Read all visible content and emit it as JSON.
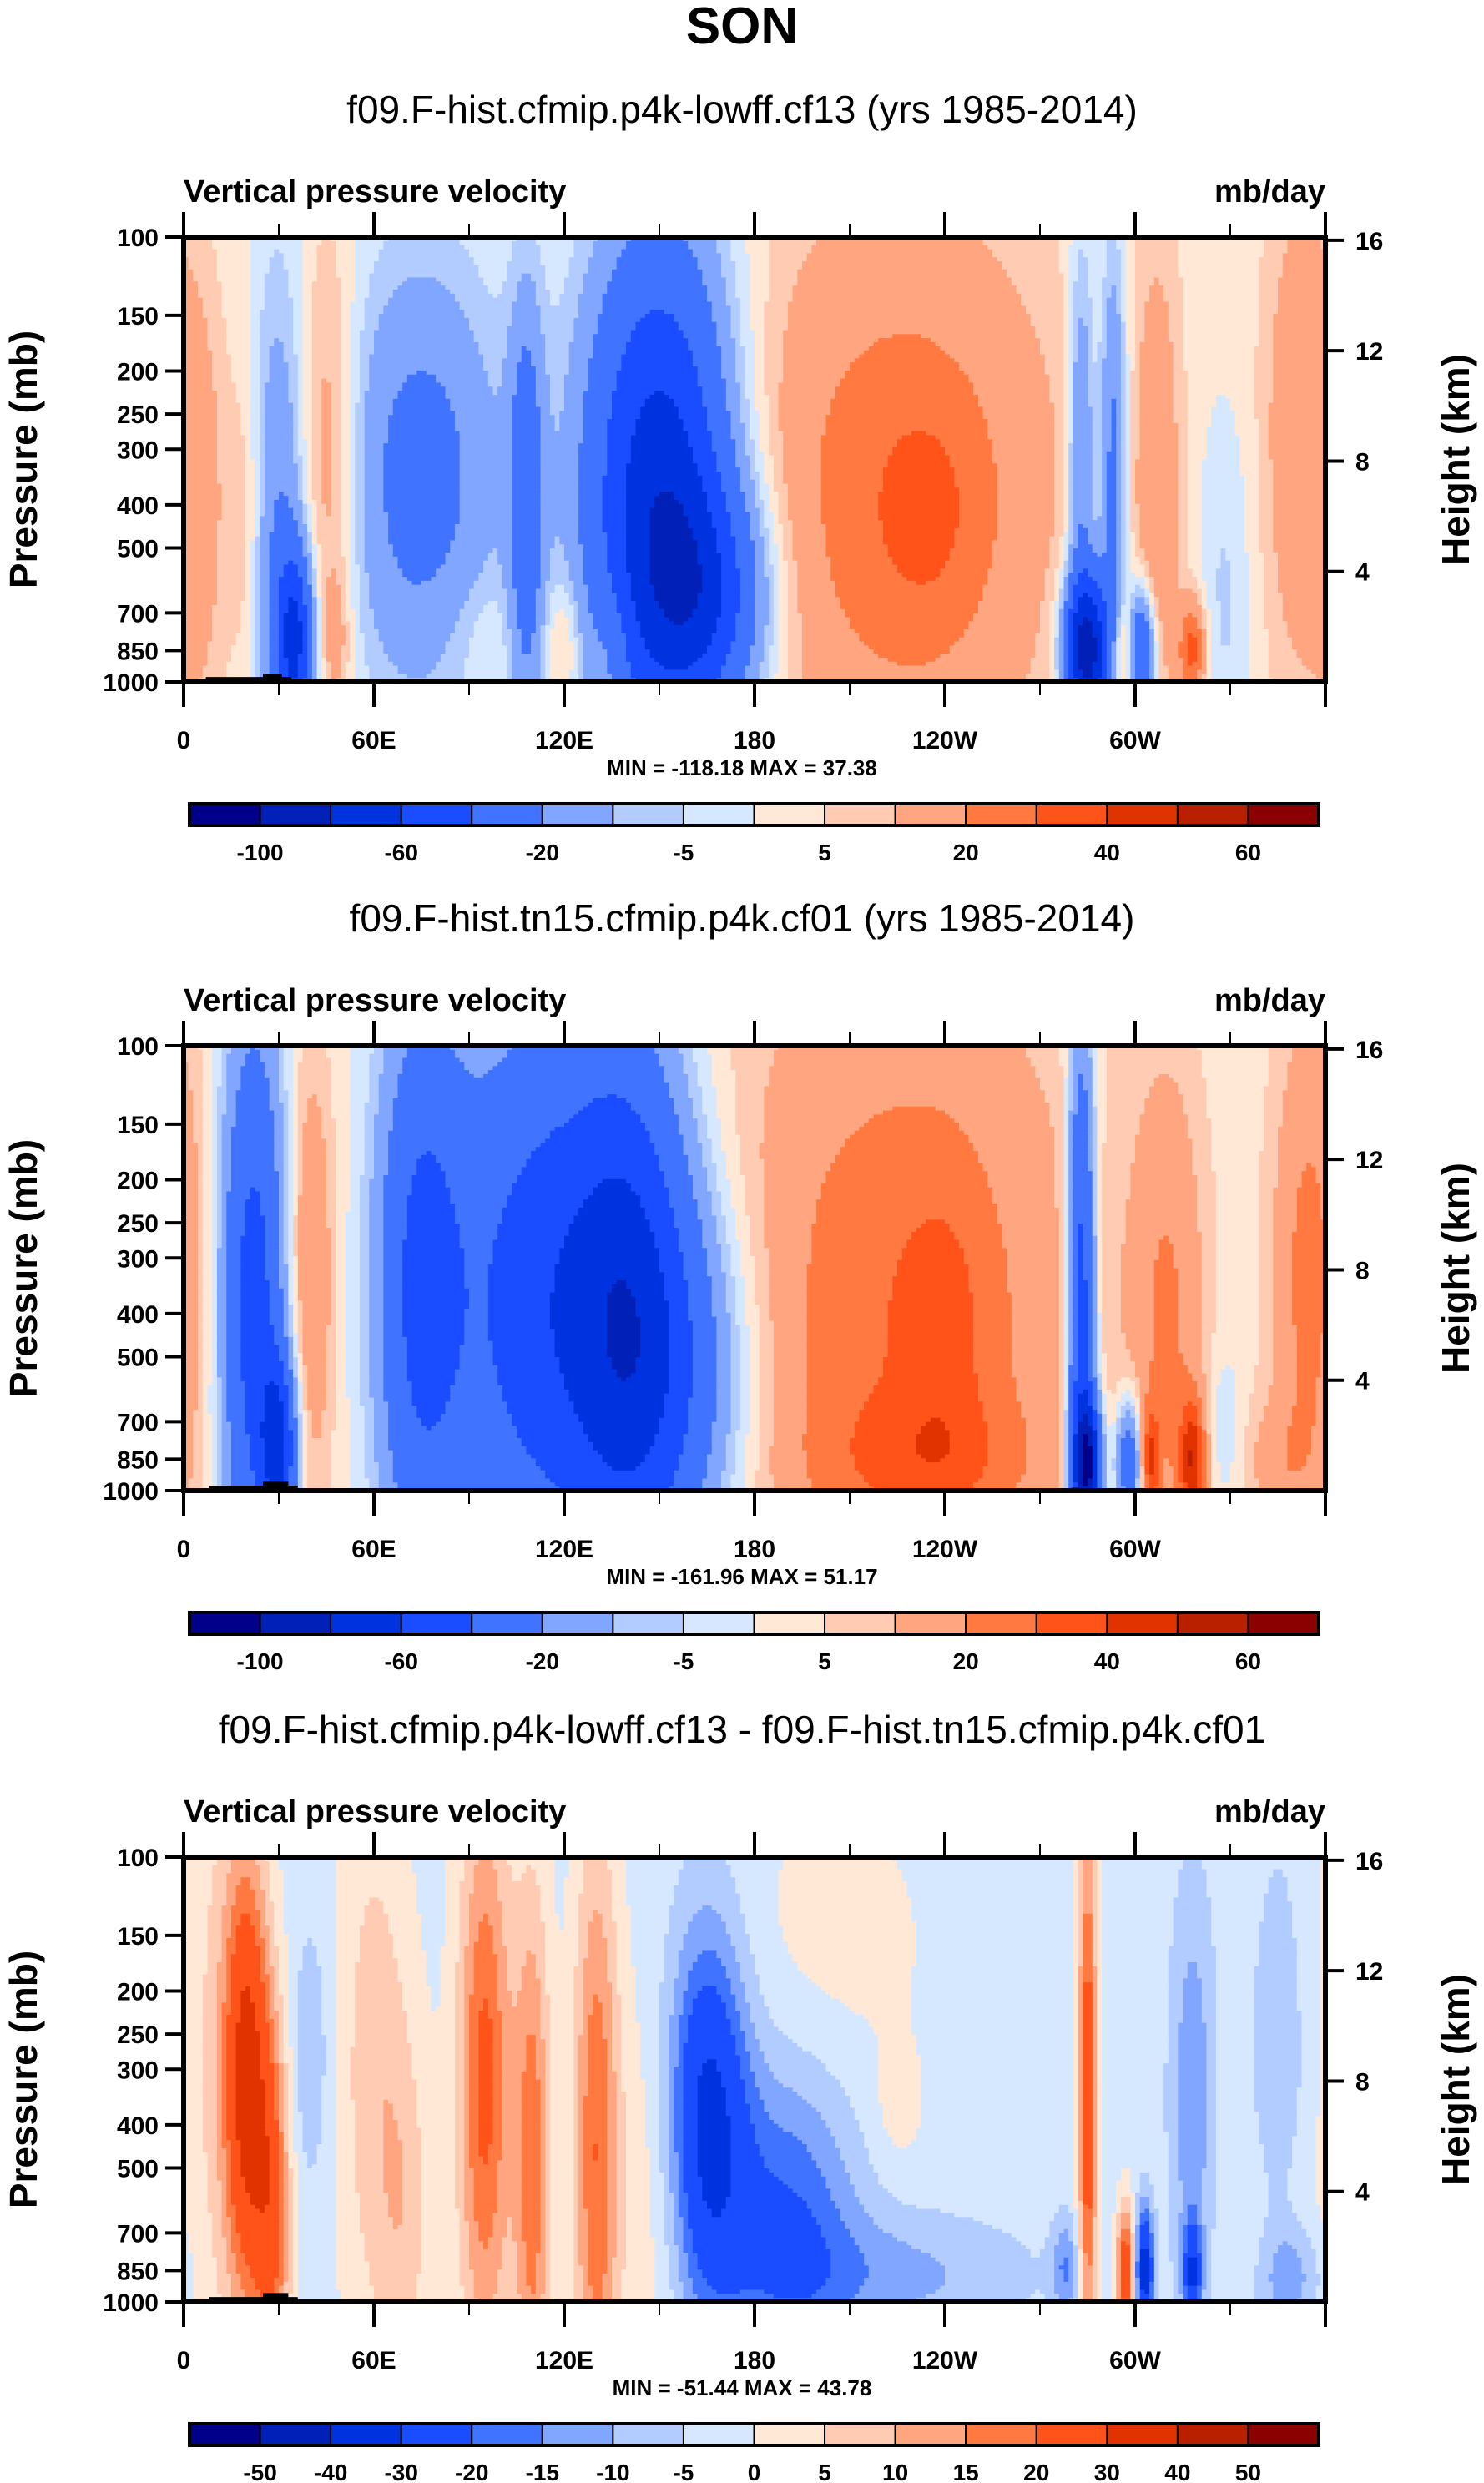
{
  "figure": {
    "main_title": "SON"
  },
  "chart_data": [
    {
      "type": "heatmap",
      "title": "f09.F-hist.cfmip.p4k-lowff.cf13 (yrs 1985-2014)",
      "left_string": "Vertical pressure velocity",
      "right_string": "mb/day",
      "xlabel": "",
      "ylabel": "Pressure (mb)",
      "ylabel_right": "Height (km)",
      "x_range": [
        0,
        360
      ],
      "x_ticks": [
        0,
        60,
        120,
        180,
        240,
        300
      ],
      "x_tick_labels": [
        "0",
        "60E",
        "120E",
        "180",
        "120W",
        "60W"
      ],
      "y_range": [
        100,
        1000
      ],
      "y_scale": "log-pressure",
      "y_ticks": [
        100,
        150,
        200,
        250,
        300,
        400,
        500,
        700,
        850,
        1000
      ],
      "y_tick_labels": [
        "100",
        "150",
        "200",
        "250",
        "300",
        "400",
        "500",
        "700",
        "850",
        "1000"
      ],
      "y_right_ticks": [
        4,
        8,
        12,
        16
      ],
      "y_right_tick_labels": [
        "4",
        "8",
        "12",
        "16"
      ],
      "min_max_text": "MIN = -118.18  MAX =  37.38",
      "min": -118.18,
      "max": 37.38,
      "levels": [
        -100,
        -80,
        -60,
        -40,
        -20,
        -10,
        -5,
        0,
        5,
        10,
        20,
        30,
        40,
        50,
        60
      ],
      "colorbar_labels": [
        "-100",
        "-60",
        "-20",
        "-5",
        "5",
        "20",
        "40",
        "60"
      ],
      "colorbar_label_every": 2,
      "field_background": 2,
      "features": [
        {
          "lon": 5,
          "p": 400,
          "dlon": 6,
          "dlp": 0.35,
          "v": 12
        },
        {
          "lon": 20,
          "p": 450,
          "dlon": 4,
          "dlp": 0.3,
          "v": 10
        },
        {
          "lon": 30,
          "p": 500,
          "dlon": 7,
          "dlp": 0.45,
          "v": -22
        },
        {
          "lon": 35,
          "p": 800,
          "dlon": 4,
          "dlp": 0.14,
          "v": -60
        },
        {
          "lon": 45,
          "p": 330,
          "dlon": 7,
          "dlp": 0.35,
          "v": 18
        },
        {
          "lon": 48,
          "p": 800,
          "dlon": 3,
          "dlp": 0.1,
          "v": 10
        },
        {
          "lon": 75,
          "p": 350,
          "dlon": 18,
          "dlp": 0.35,
          "v": -28
        },
        {
          "lon": 95,
          "p": 780,
          "dlon": 10,
          "dlp": 0.1,
          "v": 5
        },
        {
          "lon": 108,
          "p": 420,
          "dlon": 4,
          "dlp": 0.35,
          "v": -30
        },
        {
          "lon": 120,
          "p": 820,
          "dlon": 4,
          "dlp": 0.1,
          "v": 12
        },
        {
          "lon": 135,
          "p": 820,
          "dlon": 4,
          "dlp": 0.1,
          "v": 10
        },
        {
          "lon": 150,
          "p": 380,
          "dlon": 16,
          "dlp": 0.4,
          "v": -75
        },
        {
          "lon": 165,
          "p": 650,
          "dlon": 14,
          "dlp": 0.18,
          "v": -40
        },
        {
          "lon": 225,
          "p": 380,
          "dlon": 35,
          "dlp": 0.45,
          "v": 24
        },
        {
          "lon": 235,
          "p": 420,
          "dlon": 12,
          "dlp": 0.18,
          "v": 10
        },
        {
          "lon": 285,
          "p": 850,
          "dlon": 5,
          "dlp": 0.12,
          "v": -90
        },
        {
          "lon": 283,
          "p": 320,
          "dlon": 3,
          "dlp": 0.35,
          "v": -25
        },
        {
          "lon": 293,
          "p": 330,
          "dlon": 3,
          "dlp": 0.35,
          "v": -28
        },
        {
          "lon": 296,
          "p": 860,
          "dlon": 3,
          "dlp": 0.08,
          "v": 22
        },
        {
          "lon": 302,
          "p": 860,
          "dlon": 3,
          "dlp": 0.1,
          "v": -50
        },
        {
          "lon": 307,
          "p": 380,
          "dlon": 5,
          "dlp": 0.4,
          "v": 15
        },
        {
          "lon": 318,
          "p": 850,
          "dlon": 3,
          "dlp": 0.08,
          "v": 32
        },
        {
          "lon": 328,
          "p": 650,
          "dlon": 6,
          "dlp": 0.3,
          "v": -8
        },
        {
          "lon": 352,
          "p": 280,
          "dlon": 8,
          "dlp": 0.4,
          "v": 16
        }
      ],
      "topography": [
        {
          "lon0": 7,
          "lon1": 20,
          "p": 975
        },
        {
          "lon0": 20,
          "lon1": 28,
          "p": 975
        },
        {
          "lon0": 25,
          "lon1": 31,
          "p": 958
        },
        {
          "lon0": 31,
          "lon1": 34,
          "p": 975
        },
        {
          "lon0": 5,
          "lon1": 7,
          "p": 990
        },
        {
          "lon0": 100,
          "lon1": 102,
          "p": 990
        },
        {
          "lon0": 280,
          "lon1": 282,
          "p": 985
        },
        {
          "lon0": 282,
          "lon1": 300,
          "p": 995
        }
      ]
    },
    {
      "type": "heatmap",
      "title": "f09.F-hist.tn15.cfmip.p4k.cf01 (yrs 1985-2014)",
      "left_string": "Vertical pressure velocity",
      "right_string": "mb/day",
      "xlabel": "",
      "ylabel": "Pressure (mb)",
      "ylabel_right": "Height (km)",
      "x_range": [
        0,
        360
      ],
      "x_ticks": [
        0,
        60,
        120,
        180,
        240,
        300
      ],
      "x_tick_labels": [
        "0",
        "60E",
        "120E",
        "180",
        "120W",
        "60W"
      ],
      "y_range": [
        100,
        1000
      ],
      "y_scale": "log-pressure",
      "y_ticks": [
        100,
        150,
        200,
        250,
        300,
        400,
        500,
        700,
        850,
        1000
      ],
      "y_tick_labels": [
        "100",
        "150",
        "200",
        "250",
        "300",
        "400",
        "500",
        "700",
        "850",
        "1000"
      ],
      "y_right_ticks": [
        4,
        8,
        12,
        16
      ],
      "y_right_tick_labels": [
        "4",
        "8",
        "12",
        "16"
      ],
      "min_max_text": "MIN = -161.96  MAX =  51.17",
      "min": -161.96,
      "max": 51.17,
      "levels": [
        -100,
        -80,
        -60,
        -40,
        -20,
        -10,
        -5,
        0,
        5,
        10,
        20,
        30,
        40,
        50,
        60
      ],
      "colorbar_labels": [
        "-100",
        "-60",
        "-20",
        "-5",
        "5",
        "20",
        "40",
        "60"
      ],
      "colorbar_label_every": 2,
      "field_background": 2,
      "features": [
        {
          "lon": 22,
          "p": 380,
          "dlon": 7,
          "dlp": 0.45,
          "v": -50
        },
        {
          "lon": 30,
          "p": 800,
          "dlon": 4,
          "dlp": 0.14,
          "v": -60
        },
        {
          "lon": 40,
          "p": 330,
          "dlon": 5,
          "dlp": 0.35,
          "v": 18
        },
        {
          "lon": 75,
          "p": 350,
          "dlon": 10,
          "dlp": 0.45,
          "v": -45
        },
        {
          "lon": 110,
          "p": 380,
          "dlon": 18,
          "dlp": 0.45,
          "v": -50
        },
        {
          "lon": 140,
          "p": 380,
          "dlon": 14,
          "dlp": 0.45,
          "v": -55
        },
        {
          "lon": 155,
          "p": 550,
          "dlon": 18,
          "dlp": 0.3,
          "v": -30
        },
        {
          "lon": 225,
          "p": 420,
          "dlon": 38,
          "dlp": 0.55,
          "v": 26
        },
        {
          "lon": 235,
          "p": 850,
          "dlon": 24,
          "dlp": 0.1,
          "v": 12
        },
        {
          "lon": 240,
          "p": 450,
          "dlon": 10,
          "dlp": 0.25,
          "v": 10
        },
        {
          "lon": 283,
          "p": 400,
          "dlon": 3,
          "dlp": 0.45,
          "v": -55
        },
        {
          "lon": 285,
          "p": 870,
          "dlon": 3,
          "dlp": 0.1,
          "v": -90
        },
        {
          "lon": 298,
          "p": 860,
          "dlon": 3,
          "dlp": 0.1,
          "v": -40
        },
        {
          "lon": 310,
          "p": 420,
          "dlon": 8,
          "dlp": 0.4,
          "v": 18
        },
        {
          "lon": 305,
          "p": 850,
          "dlon": 2,
          "dlp": 0.08,
          "v": 30
        },
        {
          "lon": 318,
          "p": 860,
          "dlon": 3,
          "dlp": 0.1,
          "v": 40
        },
        {
          "lon": 328,
          "p": 720,
          "dlon": 4,
          "dlp": 0.12,
          "v": -8
        },
        {
          "lon": 355,
          "p": 330,
          "dlon": 8,
          "dlp": 0.4,
          "v": 22
        },
        {
          "lon": 345,
          "p": 860,
          "dlon": 8,
          "dlp": 0.1,
          "v": 10
        }
      ],
      "topography": [
        {
          "lon0": 8,
          "lon1": 25,
          "p": 975
        },
        {
          "lon0": 25,
          "lon1": 33,
          "p": 955
        },
        {
          "lon0": 33,
          "lon1": 36,
          "p": 975
        },
        {
          "lon0": 100,
          "lon1": 102,
          "p": 990
        },
        {
          "lon0": 280,
          "lon1": 282,
          "p": 985
        },
        {
          "lon0": 282,
          "lon1": 300,
          "p": 995
        }
      ]
    },
    {
      "type": "heatmap",
      "title": "f09.F-hist.cfmip.p4k-lowff.cf13 - f09.F-hist.tn15.cfmip.p4k.cf01",
      "left_string": "Vertical pressure velocity",
      "right_string": "mb/day",
      "xlabel": "",
      "ylabel": "Pressure (mb)",
      "ylabel_right": "Height (km)",
      "x_range": [
        0,
        360
      ],
      "x_ticks": [
        0,
        60,
        120,
        180,
        240,
        300
      ],
      "x_tick_labels": [
        "0",
        "60E",
        "120E",
        "180",
        "120W",
        "60W"
      ],
      "y_range": [
        100,
        1000
      ],
      "y_scale": "log-pressure",
      "y_ticks": [
        100,
        150,
        200,
        250,
        300,
        400,
        500,
        700,
        850,
        1000
      ],
      "y_tick_labels": [
        "100",
        "150",
        "200",
        "250",
        "300",
        "400",
        "500",
        "700",
        "850",
        "1000"
      ],
      "y_right_ticks": [
        4,
        8,
        12,
        16
      ],
      "y_right_tick_labels": [
        "4",
        "8",
        "12",
        "16"
      ],
      "min_max_text": "MIN = -51.44  MAX =  43.78",
      "min": -51.44,
      "max": 43.78,
      "levels": [
        -50,
        -40,
        -30,
        -20,
        -15,
        -10,
        -5,
        0,
        5,
        10,
        15,
        20,
        30,
        40,
        50
      ],
      "colorbar_labels": [
        "-50",
        "-40",
        "-30",
        "-20",
        "-15",
        "-10",
        "-5",
        "0",
        "5",
        "10",
        "15",
        "20",
        "30",
        "40",
        "50"
      ],
      "colorbar_label_every": 1,
      "field_background": -2,
      "features": [
        {
          "lon": 20,
          "p": 320,
          "dlon": 5,
          "dlp": 0.35,
          "v": 34
        },
        {
          "lon": 28,
          "p": 650,
          "dlon": 4,
          "dlp": 0.3,
          "v": 22
        },
        {
          "lon": 10,
          "p": 260,
          "dlon": 8,
          "dlp": 0.55,
          "v": 7
        },
        {
          "lon": 40,
          "p": 280,
          "dlon": 4,
          "dlp": 0.2,
          "v": -8
        },
        {
          "lon": 60,
          "p": 300,
          "dlon": 8,
          "dlp": 0.45,
          "v": 10
        },
        {
          "lon": 70,
          "p": 650,
          "dlon": 6,
          "dlp": 0.3,
          "v": 8
        },
        {
          "lon": 95,
          "p": 320,
          "dlon": 6,
          "dlp": 0.45,
          "v": 24
        },
        {
          "lon": 110,
          "p": 500,
          "dlon": 4,
          "dlp": 0.45,
          "v": 20
        },
        {
          "lon": 130,
          "p": 450,
          "dlon": 5,
          "dlp": 0.5,
          "v": 21
        },
        {
          "lon": 148,
          "p": 600,
          "dlon": 10,
          "dlp": 0.35,
          "v": 6
        },
        {
          "lon": 165,
          "p": 380,
          "dlon": 9,
          "dlp": 0.3,
          "v": -30
        },
        {
          "lon": 190,
          "p": 650,
          "dlon": 16,
          "dlp": 0.25,
          "v": -18
        },
        {
          "lon": 225,
          "p": 870,
          "dlon": 30,
          "dlp": 0.1,
          "v": -9
        },
        {
          "lon": 205,
          "p": 160,
          "dlon": 22,
          "dlp": 0.25,
          "v": 4
        },
        {
          "lon": 225,
          "p": 370,
          "dlon": 6,
          "dlp": 0.1,
          "v": 4
        },
        {
          "lon": 285,
          "p": 350,
          "dlon": 2,
          "dlp": 0.45,
          "v": 28
        },
        {
          "lon": 297,
          "p": 850,
          "dlon": 2,
          "dlp": 0.1,
          "v": 30
        },
        {
          "lon": 303,
          "p": 850,
          "dlon": 2,
          "dlp": 0.1,
          "v": -34
        },
        {
          "lon": 278,
          "p": 840,
          "dlon": 3,
          "dlp": 0.08,
          "v": -12
        },
        {
          "lon": 318,
          "p": 350,
          "dlon": 5,
          "dlp": 0.35,
          "v": -12
        },
        {
          "lon": 318,
          "p": 860,
          "dlon": 2,
          "dlp": 0.08,
          "v": -25
        },
        {
          "lon": 345,
          "p": 380,
          "dlon": 6,
          "dlp": 0.4,
          "v": -8
        },
        {
          "lon": 350,
          "p": 870,
          "dlon": 7,
          "dlp": 0.08,
          "v": -9
        },
        {
          "lon": 345,
          "p": 600,
          "dlon": 10,
          "dlp": 0.15,
          "v": 4
        }
      ],
      "topography": [
        {
          "lon0": 8,
          "lon1": 25,
          "p": 975
        },
        {
          "lon0": 25,
          "lon1": 33,
          "p": 955
        },
        {
          "lon0": 33,
          "lon1": 36,
          "p": 975
        },
        {
          "lon0": 100,
          "lon1": 102,
          "p": 990
        },
        {
          "lon0": 280,
          "lon1": 282,
          "p": 985
        },
        {
          "lon0": 282,
          "lon1": 300,
          "p": 995
        }
      ]
    }
  ],
  "colormap": [
    "#00008b",
    "#0020b8",
    "#0033e0",
    "#1a4dff",
    "#4073ff",
    "#80a6ff",
    "#b3ccff",
    "#d6e8ff",
    "#ffe9d6",
    "#ffccb3",
    "#ffa680",
    "#ff7940",
    "#ff531a",
    "#e03300",
    "#b82000",
    "#8b0000"
  ],
  "topography_color": "#000000"
}
